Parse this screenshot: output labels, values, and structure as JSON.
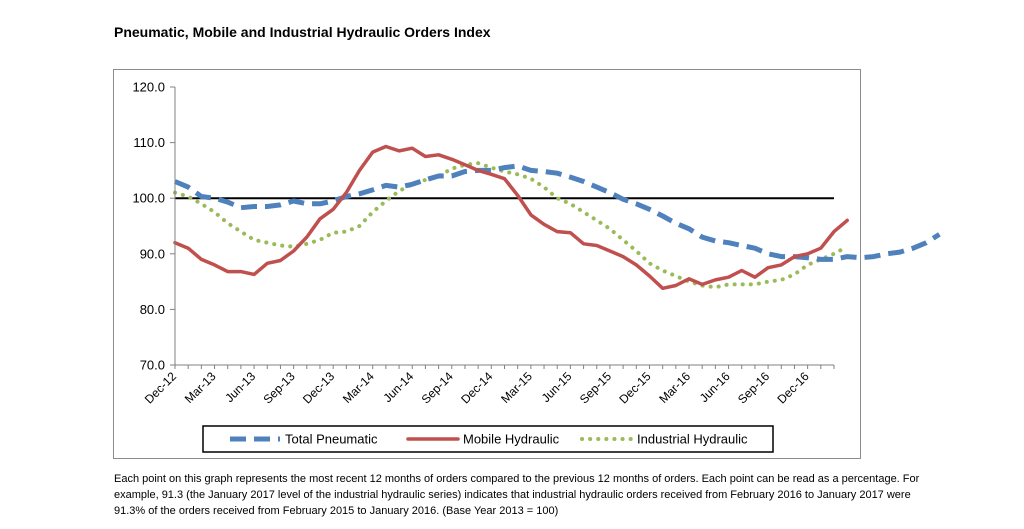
{
  "chart_data": {
    "type": "line",
    "title": "Pneumatic, Mobile and Industrial Hydraulic Orders Index",
    "xlabel": "",
    "ylabel": "",
    "ylim": [
      70,
      120
    ],
    "y_ticks": [
      "70.0",
      "80.0",
      "90.0",
      "100.0",
      "110.0",
      "120.0"
    ],
    "x_tick_labels": [
      "Dec-12",
      "Mar-13",
      "Jun-13",
      "Sep-13",
      "Dec-13",
      "Mar-14",
      "Jun-14",
      "Sep-14",
      "Dec-14",
      "Mar-15",
      "Jun-15",
      "Sep-15",
      "Dec-15",
      "Mar-16",
      "Jun-16",
      "Sep-16",
      "Dec-16"
    ],
    "reference_line": 100,
    "grid": false,
    "legend_position": "bottom",
    "series": [
      {
        "name": "Total Pneumatic",
        "color": "#4f81bd",
        "style": "dashed",
        "values": [
          103.0,
          102.0,
          100.3,
          100.0,
          99.3,
          98.3,
          98.5,
          98.5,
          98.8,
          99.5,
          99.0,
          99.0,
          99.5,
          100.3,
          100.8,
          101.5,
          102.3,
          102.0,
          102.5,
          103.3,
          104.0,
          104.0,
          104.8,
          105.0,
          105.0,
          105.5,
          105.8,
          105.0,
          104.8,
          104.5,
          103.8,
          103.0,
          102.0,
          101.0,
          99.8,
          99.0,
          98.0,
          96.8,
          95.5,
          94.5,
          93.0,
          92.3,
          92.0,
          91.5,
          91.0,
          90.0,
          89.5,
          89.5,
          89.3,
          89.0,
          89.0,
          89.5,
          89.3,
          89.5,
          90.0,
          90.3,
          91.0,
          92.0,
          93.5
        ]
      },
      {
        "name": "Mobile Hydraulic",
        "color": "#c0504d",
        "style": "solid",
        "values": [
          92.0,
          91.0,
          89.0,
          88.0,
          86.8,
          86.8,
          86.3,
          88.3,
          88.8,
          90.5,
          93.0,
          96.3,
          98.0,
          101.0,
          105.0,
          108.3,
          109.3,
          108.5,
          109.0,
          107.5,
          107.8,
          107.0,
          106.0,
          105.0,
          104.3,
          103.5,
          100.5,
          97.0,
          95.3,
          94.0,
          93.8,
          91.8,
          91.5,
          90.5,
          89.5,
          88.0,
          86.0,
          83.8,
          84.3,
          85.5,
          84.5,
          85.3,
          85.8,
          87.0,
          85.8,
          87.5,
          88.0,
          89.5,
          90.0,
          91.0,
          94.0,
          96.0
        ]
      },
      {
        "name": "Industrial Hydraulic",
        "color": "#9bbb59",
        "style": "dotted",
        "values": [
          101.0,
          100.3,
          99.0,
          97.5,
          95.5,
          94.0,
          92.5,
          92.0,
          91.5,
          91.3,
          91.8,
          92.5,
          93.8,
          94.0,
          95.0,
          97.5,
          99.5,
          101.3,
          102.5,
          103.3,
          104.0,
          105.3,
          106.0,
          106.3,
          105.5,
          104.8,
          104.3,
          103.5,
          102.0,
          100.0,
          99.0,
          97.5,
          96.0,
          94.5,
          92.5,
          90.5,
          88.3,
          87.0,
          86.0,
          85.0,
          84.3,
          84.0,
          84.5,
          84.5,
          84.5,
          85.0,
          85.3,
          86.3,
          88.0,
          89.0,
          90.0,
          91.3
        ]
      }
    ]
  },
  "caption": "Each point on this graph represents the most recent 12 months of orders compared to the previous 12 months of orders.  Each point can be read as a percentage.  For example, 91.3 (the January 2017 level of the industrial hydraulic series) indicates that industrial hydraulic orders received from February 2016 to January 2017 were 91.3% of the orders received from February 2015 to January 2016.  (Base Year 2013 = 100)"
}
